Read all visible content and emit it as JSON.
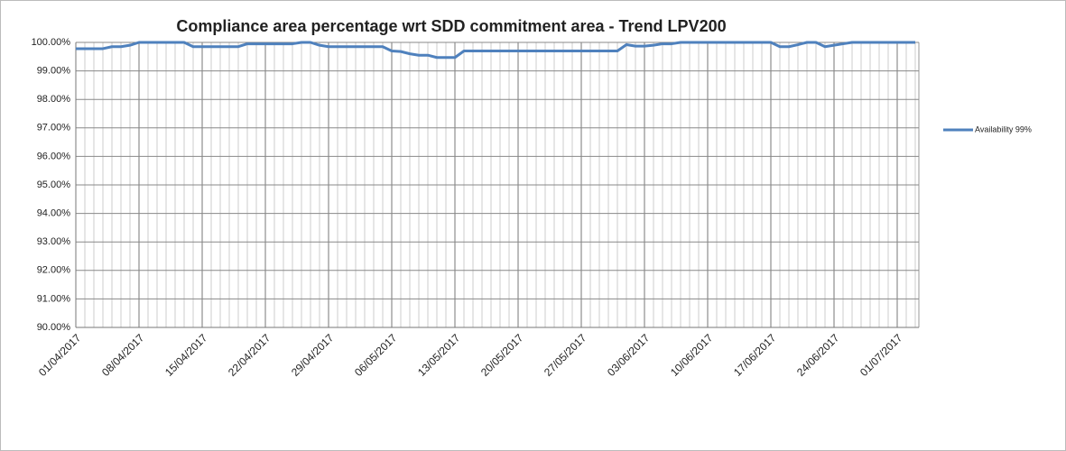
{
  "chart_data": {
    "type": "line",
    "title": "Compliance area percentage wrt SDD commitment area - Trend LPV200",
    "categories": [
      "01/04/2017",
      null,
      null,
      null,
      null,
      null,
      null,
      "08/04/2017",
      null,
      null,
      null,
      null,
      null,
      null,
      "15/04/2017",
      null,
      null,
      null,
      null,
      null,
      null,
      "22/04/2017",
      null,
      null,
      null,
      null,
      null,
      null,
      "29/04/2017",
      null,
      null,
      null,
      null,
      null,
      null,
      "06/05/2017",
      null,
      null,
      null,
      null,
      null,
      null,
      "13/05/2017",
      null,
      null,
      null,
      null,
      null,
      null,
      "20/05/2017",
      null,
      null,
      null,
      null,
      null,
      null,
      "27/05/2017",
      null,
      null,
      null,
      null,
      null,
      null,
      "03/06/2017",
      null,
      null,
      null,
      null,
      null,
      null,
      "10/06/2017",
      null,
      null,
      null,
      null,
      null,
      null,
      "17/06/2017",
      null,
      null,
      null,
      null,
      null,
      null,
      "24/06/2017",
      null,
      null,
      null,
      null,
      null,
      null,
      "01/07/2017",
      null,
      null
    ],
    "series": [
      {
        "name": "Availability 99%",
        "color": "#4f81bd",
        "values": [
          99.78,
          99.78,
          99.78,
          99.78,
          99.85,
          99.85,
          99.9,
          100,
          100,
          100,
          100,
          100,
          100,
          99.85,
          99.85,
          99.85,
          99.85,
          99.85,
          99.85,
          99.95,
          99.95,
          99.95,
          99.95,
          99.95,
          99.95,
          100,
          100,
          99.9,
          99.85,
          99.85,
          99.85,
          99.85,
          99.85,
          99.85,
          99.85,
          99.7,
          99.68,
          99.6,
          99.55,
          99.55,
          99.47,
          99.47,
          99.47,
          99.7,
          99.7,
          99.7,
          99.7,
          99.7,
          99.7,
          99.7,
          99.7,
          99.7,
          99.7,
          99.7,
          99.7,
          99.7,
          99.7,
          99.7,
          99.7,
          99.7,
          99.7,
          99.92,
          99.87,
          99.87,
          99.9,
          99.95,
          99.95,
          100,
          100,
          100,
          100,
          100,
          100,
          100,
          100,
          100,
          100,
          100,
          99.85,
          99.85,
          99.92,
          100,
          100,
          99.85,
          99.9,
          99.95,
          100,
          100,
          100,
          100,
          100,
          100,
          100,
          100
        ]
      }
    ],
    "ylim": [
      90,
      100
    ],
    "yticks": [
      {
        "value": 90,
        "label": "90.00%"
      },
      {
        "value": 91,
        "label": "91.00%"
      },
      {
        "value": 92,
        "label": "92.00%"
      },
      {
        "value": 93,
        "label": "93.00%"
      },
      {
        "value": 94,
        "label": "94.00%"
      },
      {
        "value": 95,
        "label": "95.00%"
      },
      {
        "value": 96,
        "label": "96.00%"
      },
      {
        "value": 97,
        "label": "97.00%"
      },
      {
        "value": 98,
        "label": "98.00%"
      },
      {
        "value": 99,
        "label": "99.00%"
      },
      {
        "value": 100,
        "label": "100.00%"
      }
    ],
    "grid": true,
    "legend": "right"
  }
}
